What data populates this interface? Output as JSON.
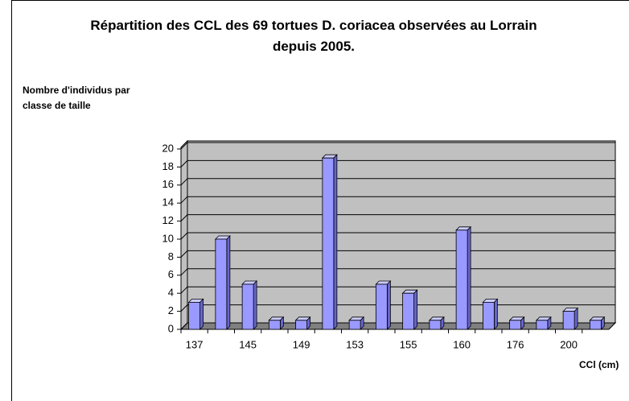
{
  "chart_data": {
    "type": "bar3d",
    "title": "Répartition des CCL des 69 tortues D. coriacea observées au Lorrain depuis 2005.",
    "y_label": "Nombre d'individus par classe de taille",
    "x_label": "CCl (cm)",
    "categories": [
      "137",
      null,
      "145",
      null,
      "149",
      null,
      "153",
      null,
      "155",
      null,
      "160",
      null,
      "176",
      null,
      "200",
      null
    ],
    "values": [
      3,
      10,
      5,
      1,
      1,
      19,
      1,
      5,
      4,
      1,
      11,
      3,
      1,
      1,
      2,
      1
    ],
    "color": "#9999ff",
    "ylim": [
      0,
      20
    ],
    "yticks": [
      0,
      2,
      4,
      6,
      8,
      10,
      12,
      14,
      16,
      18,
      20
    ],
    "grid": true
  }
}
